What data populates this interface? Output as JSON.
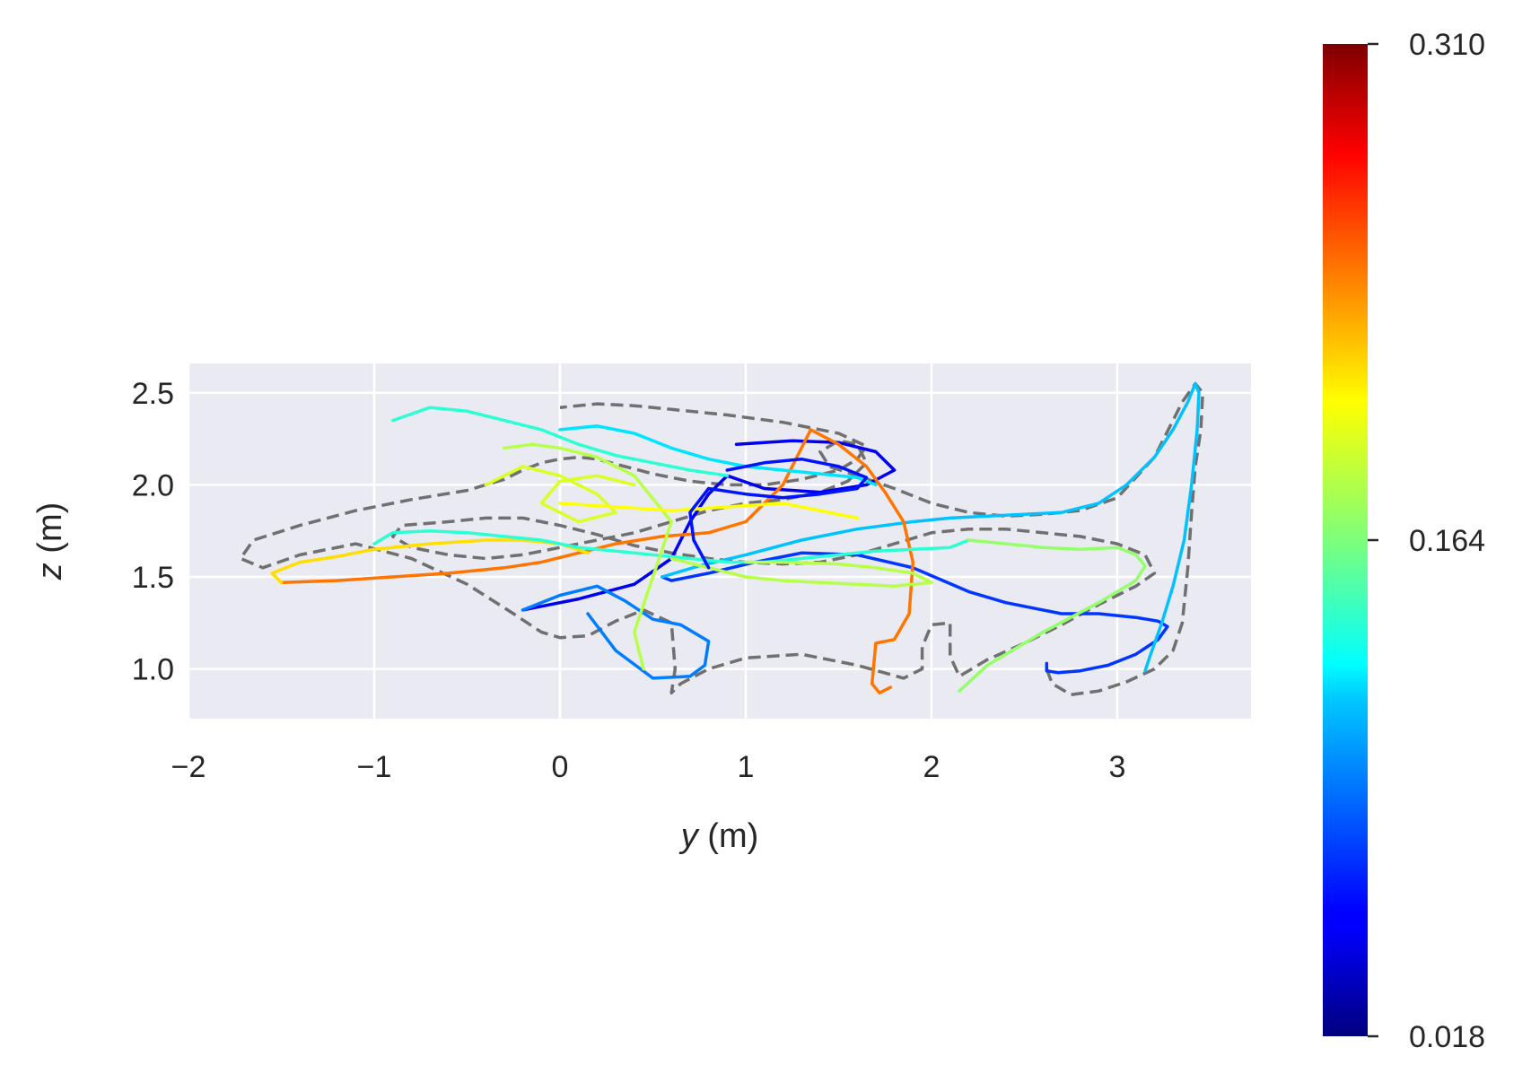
{
  "chart_data": {
    "type": "line",
    "title": "",
    "xlabel": "y (m)",
    "ylabel": "z (m)",
    "xlim": [
      -2.0,
      3.72
    ],
    "ylim": [
      0.73,
      2.66
    ],
    "xticks": [
      -2,
      -1,
      0,
      1,
      2,
      3
    ],
    "xtick_labels": [
      "−2",
      "−1",
      "0",
      "1",
      "2",
      "3"
    ],
    "yticks": [
      1.0,
      1.5,
      2.0,
      2.5
    ],
    "ytick_labels": [
      "1.0",
      "1.5",
      "2.0",
      "2.5"
    ],
    "grid": true,
    "background": "#eaeaf2",
    "colorbar": {
      "colormap": "jet",
      "min": 0.018,
      "max": 0.31,
      "tick_values": [
        0.018,
        0.164,
        0.31
      ],
      "tick_labels": [
        "0.018",
        "0.164",
        "0.310"
      ]
    },
    "reference": {
      "style": "dashed",
      "color": "#707070",
      "x": [
        2.62,
        2.65,
        2.75,
        2.9,
        3.05,
        3.2,
        3.3,
        3.35,
        3.38,
        3.4,
        3.42,
        3.45,
        3.46,
        3.42,
        3.35,
        3.2,
        3.0,
        2.8,
        2.6,
        2.4,
        2.2,
        2.0,
        1.8,
        1.6,
        1.45,
        1.4,
        1.5,
        1.6,
        1.65,
        1.55,
        1.4,
        1.2,
        1.0,
        0.8,
        0.6,
        0.4,
        0.2,
        0.0,
        -0.2,
        -0.4,
        -0.6,
        -0.8,
        -0.9,
        -0.85,
        -0.6,
        -0.4,
        -0.2,
        0.0,
        0.2,
        0.4,
        0.6,
        0.8,
        1.0,
        1.2,
        1.4,
        1.6,
        1.8,
        2.0,
        2.2,
        2.4,
        2.6,
        2.8,
        3.0,
        3.15,
        3.2,
        3.1,
        2.9,
        2.7,
        2.5,
        2.3,
        2.15,
        2.1,
        2.1,
        2.0,
        1.95,
        1.95,
        1.85,
        1.6,
        1.3,
        1.0,
        0.8,
        0.65,
        0.6,
        0.62,
        0.6,
        0.45,
        0.3,
        0.15,
        0.0,
        -0.1,
        -0.25,
        -0.5,
        -0.8,
        -1.1,
        -1.4,
        -1.6,
        -1.72,
        -1.65,
        -1.4,
        -1.1,
        -0.8,
        -0.5,
        -0.3,
        -0.2,
        -0.1,
        0.0,
        0.1,
        0.2,
        0.35,
        0.5,
        0.7,
        0.9,
        1.1,
        1.3,
        1.5,
        1.6,
        1.65,
        1.5,
        1.2,
        0.9,
        0.6,
        0.4,
        0.2,
        0.0
      ],
      "y": [
        1.0,
        0.92,
        0.86,
        0.88,
        0.93,
        1.0,
        1.1,
        1.25,
        1.55,
        1.85,
        2.1,
        2.3,
        2.5,
        2.55,
        2.45,
        2.15,
        1.93,
        1.86,
        1.84,
        1.83,
        1.85,
        1.9,
        1.98,
        2.05,
        2.1,
        2.18,
        2.24,
        2.22,
        2.12,
        2.02,
        1.96,
        1.92,
        1.9,
        1.86,
        1.8,
        1.74,
        1.7,
        1.66,
        1.62,
        1.6,
        1.62,
        1.66,
        1.72,
        1.78,
        1.8,
        1.82,
        1.82,
        1.78,
        1.73,
        1.67,
        1.63,
        1.6,
        1.58,
        1.57,
        1.58,
        1.62,
        1.68,
        1.74,
        1.76,
        1.76,
        1.74,
        1.72,
        1.68,
        1.62,
        1.52,
        1.45,
        1.35,
        1.24,
        1.14,
        1.05,
        0.96,
        1.07,
        1.25,
        1.24,
        1.12,
        1.0,
        0.95,
        1.02,
        1.08,
        1.06,
        1.0,
        0.92,
        0.87,
        1.0,
        1.25,
        1.32,
        1.26,
        1.18,
        1.17,
        1.2,
        1.3,
        1.46,
        1.6,
        1.68,
        1.62,
        1.55,
        1.6,
        1.7,
        1.78,
        1.86,
        1.92,
        1.97,
        2.03,
        2.08,
        2.12,
        2.14,
        2.15,
        2.14,
        2.1,
        2.06,
        2.02,
        2.0,
        2.0,
        2.03,
        2.08,
        2.14,
        2.21,
        2.28,
        2.34,
        2.38,
        2.41,
        2.43,
        2.44,
        2.42
      ]
    },
    "series": [
      {
        "mean_error": 0.07,
        "x": [
          2.62,
          2.62,
          2.68,
          2.8,
          2.95,
          3.1,
          3.22,
          3.27,
          3.22,
          3.1,
          2.9,
          2.7,
          2.4,
          2.2,
          1.9,
          1.6,
          1.3,
          1.05,
          0.8,
          0.6,
          0.55
        ],
        "y": [
          1.03,
          0.99,
          0.98,
          0.99,
          1.02,
          1.08,
          1.16,
          1.23,
          1.26,
          1.28,
          1.3,
          1.3,
          1.36,
          1.42,
          1.55,
          1.62,
          1.63,
          1.58,
          1.52,
          1.48,
          1.5
        ]
      },
      {
        "mean_error": 0.11,
        "x": [
          0.55,
          0.75,
          1.0,
          1.3,
          1.6,
          1.9,
          2.1,
          2.3,
          2.5,
          2.7,
          2.9,
          3.05,
          3.2,
          3.3,
          3.38,
          3.42,
          3.44,
          3.43,
          3.4,
          3.36,
          3.3,
          3.24,
          3.18,
          3.15
        ],
        "y": [
          1.5,
          1.56,
          1.62,
          1.7,
          1.76,
          1.8,
          1.82,
          1.83,
          1.84,
          1.85,
          1.9,
          2.0,
          2.15,
          2.3,
          2.45,
          2.55,
          2.5,
          2.3,
          2.0,
          1.7,
          1.45,
          1.25,
          1.08,
          0.99
        ]
      },
      {
        "mean_error": 0.05,
        "x": [
          0.95,
          1.25,
          1.5,
          1.7,
          1.8,
          1.65,
          1.4,
          1.1,
          0.9,
          0.8,
          0.7,
          0.6,
          0.4,
          0.1,
          -0.1,
          -0.2
        ],
        "y": [
          2.22,
          2.24,
          2.23,
          2.18,
          2.08,
          2.0,
          1.96,
          1.98,
          2.05,
          1.95,
          1.8,
          1.6,
          1.46,
          1.38,
          1.34,
          1.32
        ]
      },
      {
        "mean_error": 0.09,
        "x": [
          -0.2,
          0.0,
          0.2,
          0.35,
          0.5,
          0.65,
          0.8,
          0.78,
          0.7,
          0.5,
          0.3,
          0.15
        ],
        "y": [
          1.32,
          1.4,
          1.45,
          1.37,
          1.27,
          1.24,
          1.15,
          1.02,
          0.96,
          0.95,
          1.1,
          1.3
        ]
      },
      {
        "mean_error": 0.24,
        "x": [
          -1.5,
          -1.2,
          -0.9,
          -0.6,
          -0.3,
          -0.1,
          0.1,
          0.3,
          0.55,
          0.8,
          1.0,
          1.2,
          1.35,
          1.5,
          1.65,
          1.75,
          1.85,
          1.9,
          1.88,
          1.8,
          1.7,
          1.68,
          1.72,
          1.78
        ],
        "y": [
          1.47,
          1.48,
          1.5,
          1.52,
          1.55,
          1.58,
          1.63,
          1.68,
          1.72,
          1.74,
          1.8,
          2.0,
          2.3,
          2.22,
          2.1,
          1.96,
          1.8,
          1.58,
          1.3,
          1.16,
          1.14,
          0.92,
          0.87,
          0.9
        ]
      },
      {
        "mean_error": 0.21,
        "x": [
          -1.5,
          -1.55,
          -1.4,
          -1.2,
          -1.0,
          -0.7,
          -0.4,
          -0.2,
          0.0,
          0.15
        ],
        "y": [
          1.47,
          1.52,
          1.58,
          1.61,
          1.65,
          1.68,
          1.7,
          1.7,
          1.68,
          1.63
        ]
      },
      {
        "mean_error": 0.14,
        "x": [
          -1.0,
          -0.9,
          -0.7,
          -0.5,
          -0.3,
          -0.1,
          0.1,
          0.3,
          0.5,
          0.7,
          0.9,
          1.1,
          1.3,
          1.5,
          1.7,
          1.9,
          2.1,
          2.2
        ],
        "y": [
          1.68,
          1.74,
          1.75,
          1.74,
          1.72,
          1.7,
          1.66,
          1.64,
          1.62,
          1.6,
          1.58,
          1.58,
          1.6,
          1.62,
          1.64,
          1.65,
          1.66,
          1.7
        ]
      },
      {
        "mean_error": 0.14,
        "x": [
          -0.9,
          -0.7,
          -0.5,
          -0.3,
          -0.1,
          0.1,
          0.3,
          0.5,
          0.7,
          0.9
        ],
        "y": [
          2.35,
          2.42,
          2.4,
          2.35,
          2.3,
          2.22,
          2.16,
          2.12,
          2.08,
          2.05
        ]
      },
      {
        "mean_error": 0.12,
        "x": [
          0.0,
          0.2,
          0.4,
          0.6,
          0.8,
          1.0,
          1.2,
          1.4,
          1.6,
          1.7
        ],
        "y": [
          2.3,
          2.32,
          2.28,
          2.2,
          2.14,
          2.1,
          2.08,
          2.06,
          2.04,
          2.0
        ]
      },
      {
        "mean_error": 0.17,
        "x": [
          2.2,
          2.4,
          2.6,
          2.8,
          3.0,
          3.1,
          3.15,
          3.1,
          2.9,
          2.6,
          2.3,
          2.15
        ],
        "y": [
          1.7,
          1.68,
          1.66,
          1.65,
          1.66,
          1.62,
          1.56,
          1.48,
          1.36,
          1.2,
          1.02,
          0.88
        ]
      },
      {
        "mean_error": 0.18,
        "x": [
          -0.3,
          -0.15,
          0.0,
          0.2,
          0.4,
          0.6,
          0.5,
          0.4,
          0.45
        ],
        "y": [
          2.2,
          2.22,
          2.2,
          2.15,
          2.05,
          1.8,
          1.5,
          1.2,
          1.0
        ]
      },
      {
        "mean_error": 0.19,
        "x": [
          -0.4,
          -0.2,
          0.0,
          0.2,
          0.3,
          0.1,
          -0.1,
          0.0,
          0.2,
          0.4
        ],
        "y": [
          2.0,
          2.1,
          2.05,
          1.95,
          1.85,
          1.8,
          1.9,
          2.02,
          2.05,
          2.0
        ]
      },
      {
        "mean_error": 0.18,
        "x": [
          0.6,
          0.8,
          1.0,
          1.2,
          1.4,
          1.6,
          1.8,
          2.0,
          1.9,
          1.7,
          1.5,
          1.2,
          1.0
        ],
        "y": [
          1.6,
          1.55,
          1.5,
          1.48,
          1.47,
          1.46,
          1.45,
          1.47,
          1.52,
          1.55,
          1.57,
          1.58,
          1.58
        ]
      },
      {
        "mean_error": 0.2,
        "x": [
          0.0,
          0.3,
          0.6,
          0.9,
          1.2,
          1.4,
          1.6
        ],
        "y": [
          1.9,
          1.88,
          1.86,
          1.88,
          1.9,
          1.86,
          1.82
        ]
      },
      {
        "mean_error": 0.06,
        "x": [
          0.9,
          1.1,
          1.3,
          1.5,
          1.65,
          1.6,
          1.4,
          1.2,
          1.0,
          0.8,
          0.7,
          0.72,
          0.8
        ],
        "y": [
          2.08,
          2.12,
          2.14,
          2.1,
          2.04,
          1.98,
          1.95,
          1.93,
          1.95,
          1.98,
          1.85,
          1.7,
          1.55
        ]
      }
    ]
  }
}
